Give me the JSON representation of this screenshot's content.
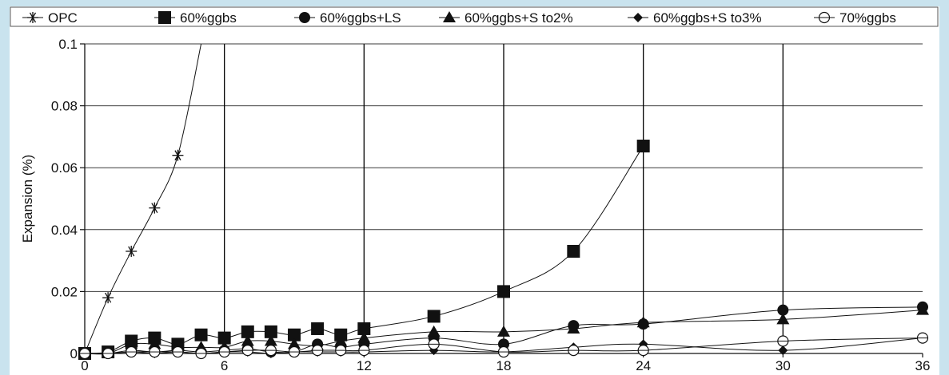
{
  "chart_data": {
    "type": "line",
    "title": "",
    "xlabel": "",
    "ylabel": "Expansion (%)",
    "xlim": [
      0,
      36
    ],
    "ylim": [
      0,
      0.1
    ],
    "x_ticks": [
      0,
      6,
      12,
      18,
      24,
      30,
      36
    ],
    "y_ticks": [
      0,
      0.02,
      0.04,
      0.06,
      0.08,
      0.1
    ],
    "y_tick_labels": [
      "0",
      "0.02",
      "0.04",
      "0.06",
      "0.08",
      "0.1"
    ],
    "vertical_grid_at": [
      6,
      12,
      18,
      24,
      30
    ],
    "horizontal_grid": true,
    "legend_position": "top",
    "series": [
      {
        "name": "OPC",
        "marker": "asterisk",
        "x": [
          0,
          1,
          2,
          3,
          4,
          5
        ],
        "y": [
          0,
          0.018,
          0.033,
          0.047,
          0.064,
          0.1
        ]
      },
      {
        "name": "60%ggbs",
        "marker": "filled-square",
        "x": [
          0,
          1,
          2,
          3,
          4,
          5,
          6,
          7,
          8,
          9,
          10,
          11,
          12,
          15,
          18,
          21,
          24
        ],
        "y": [
          0,
          0.0005,
          0.004,
          0.005,
          0.003,
          0.006,
          0.005,
          0.007,
          0.007,
          0.006,
          0.008,
          0.006,
          0.008,
          0.012,
          0.02,
          0.033,
          0.067
        ]
      },
      {
        "name": "60%ggbs+LS",
        "marker": "filled-circle",
        "x": [
          0,
          1,
          2,
          3,
          4,
          5,
          6,
          7,
          8,
          9,
          10,
          11,
          12,
          15,
          18,
          21,
          24,
          30,
          36
        ],
        "y": [
          0,
          0,
          0.001,
          0.0005,
          0.001,
          0.0005,
          0.001,
          0.0015,
          0.0005,
          0.0005,
          0.003,
          0.002,
          0.003,
          0.005,
          0.003,
          0.009,
          0.0095,
          0.014,
          0.015
        ]
      },
      {
        "name": "60%ggbs+S to2%",
        "marker": "filled-triangle",
        "x": [
          0,
          1,
          2,
          3,
          4,
          5,
          6,
          7,
          8,
          9,
          10,
          11,
          12,
          15,
          18,
          21,
          24,
          30,
          36
        ],
        "y": [
          0,
          0,
          0.003,
          0.003,
          0.002,
          0.002,
          0.002,
          0.004,
          0.004,
          0.003,
          0.0025,
          0.004,
          0.005,
          0.007,
          0.007,
          0.008,
          0.01,
          0.011,
          0.014
        ]
      },
      {
        "name": "60%ggbs+S to3%",
        "marker": "filled-diamond",
        "x": [
          0,
          1,
          2,
          3,
          4,
          5,
          6,
          7,
          8,
          9,
          10,
          11,
          12,
          15,
          18,
          21,
          24,
          30,
          36
        ],
        "y": [
          0,
          0,
          0.0005,
          0,
          0.0005,
          0,
          0.0005,
          0.0005,
          0,
          0.0005,
          0.0005,
          0.0005,
          0.0005,
          0.001,
          0.0005,
          0.002,
          0.003,
          0.001,
          0.005
        ]
      },
      {
        "name": "70%ggbs",
        "marker": "open-circle",
        "x": [
          0,
          1,
          2,
          3,
          4,
          5,
          6,
          7,
          8,
          9,
          10,
          11,
          12,
          15,
          18,
          21,
          24,
          30,
          36
        ],
        "y": [
          0,
          0,
          0.0005,
          0.0005,
          0.0005,
          0,
          0.0005,
          0.001,
          0.001,
          0.0005,
          0.001,
          0.001,
          0.001,
          0.003,
          0.0005,
          0.001,
          0.001,
          0.004,
          0.005
        ]
      }
    ]
  },
  "colors": {
    "page_background": "#c9e3ee",
    "plot_background": "#ffffff",
    "ink": "#111111",
    "grid": "#000000"
  }
}
